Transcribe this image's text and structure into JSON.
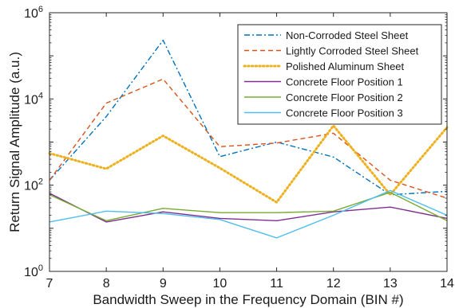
{
  "chart_data": {
    "type": "line",
    "xlabel": "Bandwidth Sweep in the Frequency Domain (BIN #)",
    "ylabel": "Return Signal Amplitude (a.u.)",
    "xlim": [
      7,
      14
    ],
    "ylim": [
      1,
      1000000
    ],
    "yscale": "log",
    "x": [
      7,
      8,
      9,
      10,
      11,
      12,
      13,
      14
    ],
    "x_ticks": [
      "7",
      "8",
      "9",
      "10",
      "11",
      "12",
      "13",
      "14"
    ],
    "y_ticks": [
      {
        "value": 1,
        "base": "10",
        "exp": "0"
      },
      {
        "value": 100,
        "base": "10",
        "exp": "2"
      },
      {
        "value": 10000,
        "base": "10",
        "exp": "4"
      },
      {
        "value": 1000000,
        "base": "10",
        "exp": "6"
      }
    ],
    "grid": false,
    "legend_position": "top-right",
    "series": [
      {
        "name": "Non-Corroded Steel Sheet",
        "color": "#0072BD",
        "style": "dashdot",
        "values": [
          130,
          3900,
          230000,
          460,
          1000,
          450,
          60,
          72
        ]
      },
      {
        "name": "Lightly Corroded Steel Sheet",
        "color": "#D95319",
        "style": "dashed",
        "values": [
          130,
          8000,
          29000,
          780,
          950,
          1600,
          130,
          50
        ]
      },
      {
        "name": "Polished Aluminum Sheet",
        "color": "#EDB120",
        "style": "dotted",
        "values": [
          550,
          240,
          1400,
          250,
          40,
          2400,
          60,
          2200
        ]
      },
      {
        "name": "Concrete Floor Position 1",
        "color": "#7E2F8E",
        "style": "solid",
        "values": [
          65,
          14,
          24,
          17,
          15,
          24,
          31,
          17
        ]
      },
      {
        "name": "Concrete Floor Position 2",
        "color": "#77AC30",
        "style": "solid",
        "values": [
          60,
          15,
          29,
          23,
          23,
          25,
          68,
          15
        ]
      },
      {
        "name": "Concrete Floor Position 3",
        "color": "#4DBEEE",
        "style": "solid",
        "values": [
          14,
          25,
          22,
          16,
          6,
          20,
          75,
          20
        ]
      }
    ]
  }
}
